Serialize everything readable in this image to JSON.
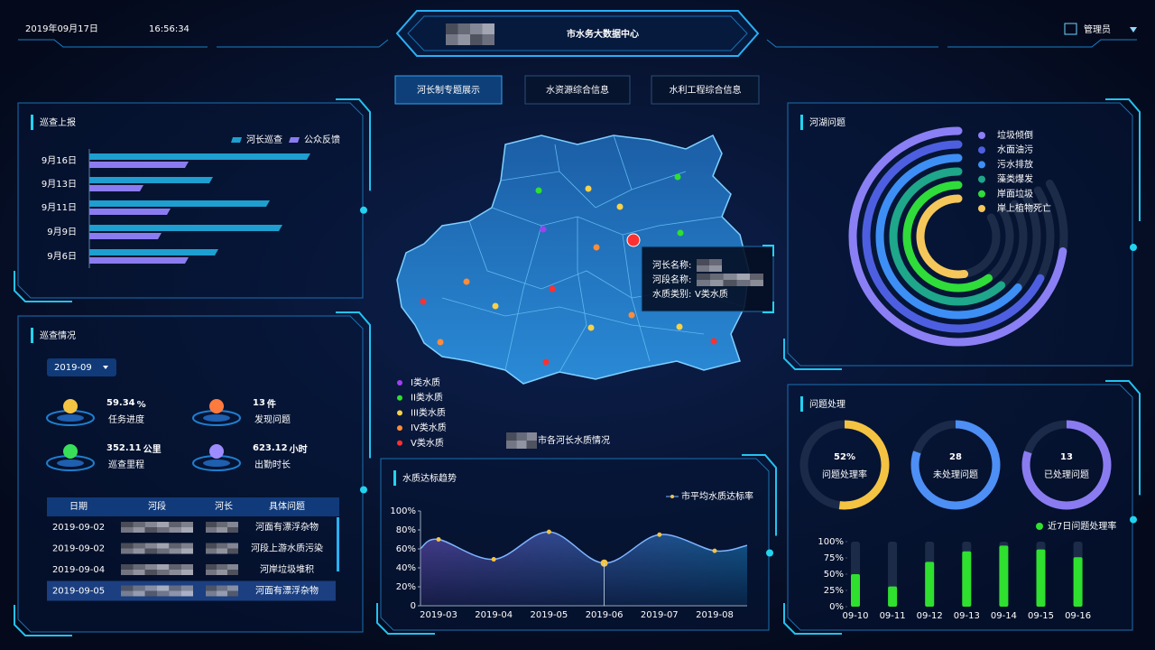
{
  "header": {
    "date": "2019年09月17日",
    "time": "16:56:34",
    "title": "市水务大数据中心",
    "user": "管理员"
  },
  "tabs": [
    "河长制专题展示",
    "水资源综合信息",
    "水利工程综合信息"
  ],
  "patrol_status": {
    "title": "巡查情况",
    "month": "2019-09",
    "stats": [
      {
        "value": "59.34",
        "unit": "%",
        "label": "任务进度",
        "color": "#f5c342"
      },
      {
        "value": "13",
        "unit": "件",
        "label": "发现问题",
        "color": "#ff7a3d"
      },
      {
        "value": "352.11",
        "unit": "公里",
        "label": "巡查里程",
        "color": "#38e05a"
      },
      {
        "value": "623.12",
        "unit": "小时",
        "label": "出勤时长",
        "color": "#9d8cff"
      }
    ],
    "table": {
      "header": [
        "日期",
        "河段",
        "河长",
        "具体问题"
      ],
      "rows": [
        {
          "date": "2019-09-02",
          "issue": "河面有漂浮杂物"
        },
        {
          "date": "2019-09-02",
          "issue": "河段上游水质污染"
        },
        {
          "date": "2019-09-04",
          "issue": "河岸垃圾堆积"
        },
        {
          "date": "2019-09-05",
          "issue": "河面有漂浮杂物"
        }
      ]
    }
  },
  "map": {
    "legend": [
      {
        "name": "I类水质",
        "color": "#a040f0"
      },
      {
        "name": "II类水质",
        "color": "#2fe02f"
      },
      {
        "name": "III类水质",
        "color": "#f7d14a"
      },
      {
        "name": "IV类水质",
        "color": "#ff8c3a"
      },
      {
        "name": "V类水质",
        "color": "#ff3030"
      }
    ],
    "caption": "市各河长水质情况",
    "tooltip": {
      "fields": [
        "河长名称:",
        "河段名称:",
        "水质类别:"
      ],
      "quality": "V类水质"
    }
  },
  "chart_data": [
    {
      "type": "hbar",
      "title": "巡查上报",
      "categories": [
        "9月16日",
        "9月13日",
        "9月11日",
        "9月9日",
        "9月6日"
      ],
      "series": [
        {
          "name": "河长巡查",
          "color": "#1e9fd0",
          "values": [
            245,
            137,
            200,
            214,
            143
          ]
        },
        {
          "name": "公众反馈",
          "color": "#8a7cf0",
          "values": [
            110,
            60,
            90,
            80,
            110
          ]
        }
      ]
    },
    {
      "type": "line",
      "title": "水质达标趋势",
      "categories": [
        "2019-03",
        "2019-04",
        "2019-05",
        "2019-06",
        "2019-07",
        "2019-08"
      ],
      "series": [
        {
          "name": "市平均水质达标率",
          "color": "#f5c342",
          "values": [
            70,
            49,
            78,
            45,
            75,
            58
          ]
        }
      ],
      "ylim": [
        0,
        100
      ],
      "yticks": [
        0,
        {
          "value": 20,
          "label": "20%"
        },
        {
          "value": 40,
          "label": "40%"
        },
        {
          "value": 60,
          "label": "60%"
        },
        {
          "value": 80,
          "label": "80%"
        },
        {
          "value": 100,
          "label": "100%"
        }
      ]
    },
    {
      "type": "radial",
      "title": "河湖问题",
      "categories": [
        "垃圾倾倒",
        "水面油污",
        "污水排放",
        "藻类爆发",
        "岸面垃圾",
        "岸上植物死亡"
      ],
      "colors": [
        "#8b7ff5",
        "#4d5fe0",
        "#3d8ff5",
        "#1ea78a",
        "#2fdc3a",
        "#f5c75a"
      ],
      "values": [
        97,
        90,
        85,
        82,
        80,
        70
      ]
    },
    {
      "type": "gauge",
      "title": "问题处理",
      "categories": [
        "问题处理率",
        "未处理问题",
        "已处理问题"
      ],
      "values": [
        52,
        28,
        13
      ],
      "value_labels": [
        "52%",
        "28",
        "13"
      ],
      "colors": [
        "#f5c342",
        "#4d8ff5",
        "#8a7cf0"
      ]
    },
    {
      "type": "bar",
      "categories": [
        "09-10",
        "09-11",
        "09-12",
        "09-13",
        "09-14",
        "09-15",
        "09-16"
      ],
      "series": [
        {
          "name": "近7日问题处理率",
          "color": "#2fe02f",
          "values": [
            50,
            31,
            69,
            85,
            94,
            88,
            76
          ]
        }
      ],
      "ylim": [
        0,
        100
      ],
      "yticks": [
        {
          "value": 0,
          "label": "0%"
        },
        {
          "value": 25,
          "label": "25%"
        },
        {
          "value": 50,
          "label": "50%"
        },
        {
          "value": 75,
          "label": "75%"
        },
        {
          "value": 100,
          "label": "100%"
        }
      ]
    }
  ]
}
